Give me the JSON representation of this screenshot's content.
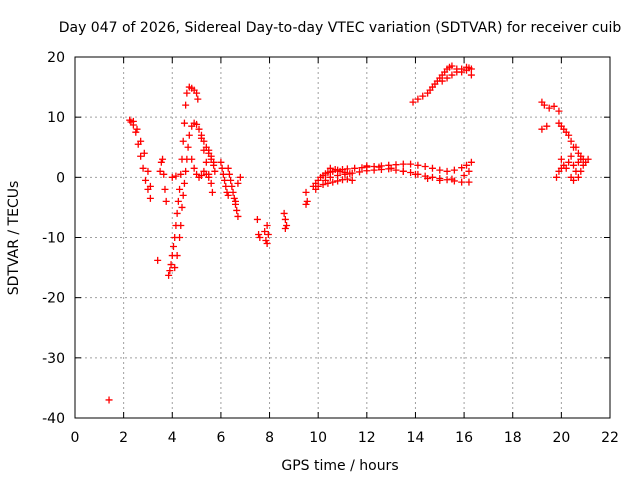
{
  "chart_data": {
    "type": "scatter",
    "title": "Day 047 of 2026, Sidereal Day-to-day VTEC variation (SDTVAR) for receiver cuib",
    "xlabel": "GPS time / hours",
    "ylabel": "SDTVAR / TECUs",
    "xlim": [
      0,
      22
    ],
    "ylim": [
      -40,
      20
    ],
    "xticks": [
      0,
      2,
      4,
      6,
      8,
      10,
      12,
      14,
      16,
      18,
      20,
      22
    ],
    "yticks": [
      -40,
      -30,
      -20,
      -10,
      0,
      10,
      20
    ],
    "grid": true,
    "marker": "+",
    "color": "#ff0000",
    "series": [
      {
        "name": "SDTVAR",
        "points": [
          [
            1.4,
            -37.0
          ],
          [
            2.25,
            9.5
          ],
          [
            2.3,
            9.2
          ],
          [
            2.4,
            8.7
          ],
          [
            2.5,
            7.5
          ],
          [
            2.6,
            5.5
          ],
          [
            2.7,
            3.5
          ],
          [
            2.8,
            1.5
          ],
          [
            2.9,
            -0.5
          ],
          [
            3.0,
            -2.0
          ],
          [
            3.1,
            -3.5
          ],
          [
            2.4,
            9.3
          ],
          [
            2.55,
            8.0
          ],
          [
            2.7,
            6.0
          ],
          [
            2.85,
            4.0
          ],
          [
            3.0,
            1.0
          ],
          [
            3.1,
            -1.5
          ],
          [
            3.4,
            -13.8
          ],
          [
            3.5,
            1.0
          ],
          [
            3.55,
            2.5
          ],
          [
            3.6,
            3.0
          ],
          [
            3.65,
            0.5
          ],
          [
            3.7,
            -2.0
          ],
          [
            3.75,
            -4.0
          ],
          [
            3.85,
            -16.3
          ],
          [
            3.9,
            -15.5
          ],
          [
            3.95,
            -14.5
          ],
          [
            4.0,
            -13.0
          ],
          [
            4.05,
            -11.5
          ],
          [
            4.1,
            -10.0
          ],
          [
            4.15,
            -8.0
          ],
          [
            4.2,
            -6.0
          ],
          [
            4.25,
            -4.0
          ],
          [
            4.3,
            -2.0
          ],
          [
            4.35,
            0.5
          ],
          [
            4.4,
            3.0
          ],
          [
            4.45,
            6.0
          ],
          [
            4.5,
            9.0
          ],
          [
            4.55,
            12.0
          ],
          [
            4.6,
            14.0
          ],
          [
            4.7,
            15.0
          ],
          [
            4.8,
            14.8
          ],
          [
            4.9,
            14.5
          ],
          [
            5.0,
            14.0
          ],
          [
            5.05,
            13.0
          ],
          [
            4.1,
            -15.0
          ],
          [
            4.2,
            -13.0
          ],
          [
            4.3,
            -10.0
          ],
          [
            4.35,
            -8.0
          ],
          [
            4.4,
            -5.0
          ],
          [
            4.45,
            -3.0
          ],
          [
            4.5,
            -1.0
          ],
          [
            4.55,
            1.0
          ],
          [
            4.6,
            3.0
          ],
          [
            4.65,
            5.0
          ],
          [
            4.7,
            7.0
          ],
          [
            4.8,
            8.5
          ],
          [
            4.9,
            9.0
          ],
          [
            5.0,
            8.8
          ],
          [
            5.1,
            8.0
          ],
          [
            5.2,
            6.5
          ],
          [
            5.3,
            4.5
          ],
          [
            5.4,
            2.5
          ],
          [
            5.5,
            0.5
          ],
          [
            5.6,
            -1.0
          ],
          [
            5.65,
            -2.5
          ],
          [
            4.0,
            0.0
          ],
          [
            4.15,
            0.2
          ],
          [
            4.8,
            3.0
          ],
          [
            4.9,
            1.5
          ],
          [
            5.0,
            0.5
          ],
          [
            5.1,
            0.0
          ],
          [
            5.2,
            0.3
          ],
          [
            5.3,
            1.0
          ],
          [
            5.4,
            0.5
          ],
          [
            5.5,
            0.0
          ],
          [
            5.2,
            7.0
          ],
          [
            5.3,
            6.0
          ],
          [
            5.4,
            5.0
          ],
          [
            5.5,
            4.0
          ],
          [
            5.6,
            3.0
          ],
          [
            5.7,
            2.0
          ],
          [
            5.75,
            1.0
          ],
          [
            5.5,
            4.5
          ],
          [
            5.6,
            3.5
          ],
          [
            5.7,
            2.5
          ],
          [
            6.0,
            2.5
          ],
          [
            6.05,
            1.5
          ],
          [
            6.1,
            0.5
          ],
          [
            6.15,
            -0.5
          ],
          [
            6.2,
            -1.5
          ],
          [
            6.25,
            -2.5
          ],
          [
            6.3,
            -3.0
          ],
          [
            6.3,
            1.5
          ],
          [
            6.35,
            0.5
          ],
          [
            6.4,
            -0.5
          ],
          [
            6.45,
            -1.5
          ],
          [
            6.5,
            -2.5
          ],
          [
            6.55,
            -3.5
          ],
          [
            6.6,
            -4.5
          ],
          [
            6.65,
            -5.5
          ],
          [
            6.7,
            -6.5
          ],
          [
            6.8,
            0.0
          ],
          [
            6.7,
            -1.0
          ],
          [
            6.6,
            -4.0
          ],
          [
            7.5,
            -7.0
          ],
          [
            7.55,
            -9.5
          ],
          [
            7.6,
            -10.0
          ],
          [
            7.8,
            -9.0
          ],
          [
            7.85,
            -10.5
          ],
          [
            7.9,
            -11.0
          ],
          [
            7.95,
            -9.5
          ],
          [
            7.9,
            -8.0
          ],
          [
            8.6,
            -6.0
          ],
          [
            8.65,
            -7.0
          ],
          [
            8.7,
            -8.0
          ],
          [
            8.65,
            -8.5
          ],
          [
            9.5,
            -2.5
          ],
          [
            9.55,
            -4.0
          ],
          [
            9.5,
            -4.5
          ],
          [
            9.8,
            -1.5
          ],
          [
            9.9,
            -1.0
          ],
          [
            10.0,
            -0.5
          ],
          [
            10.1,
            0.0
          ],
          [
            10.2,
            0.3
          ],
          [
            10.3,
            0.6
          ],
          [
            10.4,
            0.8
          ],
          [
            10.5,
            0.9
          ],
          [
            10.6,
            1.0
          ],
          [
            10.8,
            1.2
          ],
          [
            11.0,
            1.3
          ],
          [
            11.2,
            1.4
          ],
          [
            11.5,
            1.5
          ],
          [
            11.8,
            1.6
          ],
          [
            12.0,
            1.7
          ],
          [
            12.3,
            1.8
          ],
          [
            12.6,
            1.9
          ],
          [
            12.9,
            2.0
          ],
          [
            13.2,
            2.1
          ],
          [
            13.5,
            2.2
          ],
          [
            13.8,
            2.2
          ],
          [
            14.1,
            2.0
          ],
          [
            14.4,
            1.8
          ],
          [
            14.7,
            1.5
          ],
          [
            15.0,
            1.2
          ],
          [
            15.3,
            1.0
          ],
          [
            15.6,
            1.2
          ],
          [
            15.9,
            1.6
          ],
          [
            16.1,
            2.0
          ],
          [
            16.3,
            2.5
          ],
          [
            9.9,
            -2.0
          ],
          [
            10.0,
            -1.5
          ],
          [
            10.2,
            -1.2
          ],
          [
            10.4,
            -1.0
          ],
          [
            10.6,
            -0.8
          ],
          [
            10.8,
            -0.6
          ],
          [
            11.0,
            -0.4
          ],
          [
            11.2,
            -0.3
          ],
          [
            11.4,
            -0.5
          ],
          [
            10.3,
            -0.5
          ],
          [
            10.5,
            0.0
          ],
          [
            10.8,
            0.3
          ],
          [
            11.1,
            0.5
          ],
          [
            11.4,
            0.7
          ],
          [
            11.7,
            0.9
          ],
          [
            12.0,
            1.1
          ],
          [
            12.3,
            1.2
          ],
          [
            12.6,
            1.3
          ],
          [
            12.9,
            1.4
          ],
          [
            13.2,
            1.2
          ],
          [
            13.5,
            1.0
          ],
          [
            13.8,
            0.8
          ],
          [
            14.1,
            0.5
          ],
          [
            14.4,
            0.2
          ],
          [
            14.7,
            0.0
          ],
          [
            15.0,
            -0.2
          ],
          [
            15.3,
            -0.4
          ],
          [
            15.6,
            -0.6
          ],
          [
            15.9,
            -0.8
          ],
          [
            16.2,
            -0.8
          ],
          [
            10.5,
            1.5
          ],
          [
            10.7,
            1.3
          ],
          [
            10.9,
            1.0
          ],
          [
            11.1,
            0.8
          ],
          [
            11.3,
            0.6
          ],
          [
            12.0,
            1.9
          ],
          [
            12.5,
            1.7
          ],
          [
            13.0,
            1.5
          ],
          [
            13.5,
            1.0
          ],
          [
            14.0,
            0.5
          ],
          [
            14.5,
            -0.2
          ],
          [
            15.0,
            -0.5
          ],
          [
            15.5,
            -0.3
          ],
          [
            16.0,
            0.3
          ],
          [
            16.2,
            1.0
          ],
          [
            13.9,
            12.5
          ],
          [
            14.1,
            13.0
          ],
          [
            14.3,
            13.5
          ],
          [
            14.5,
            14.0
          ],
          [
            14.6,
            14.5
          ],
          [
            14.7,
            15.0
          ],
          [
            14.8,
            15.5
          ],
          [
            14.9,
            16.0
          ],
          [
            15.0,
            16.5
          ],
          [
            15.1,
            17.0
          ],
          [
            15.2,
            17.5
          ],
          [
            15.3,
            18.0
          ],
          [
            15.4,
            18.3
          ],
          [
            15.5,
            18.5
          ],
          [
            15.7,
            18.0
          ],
          [
            15.9,
            17.5
          ],
          [
            16.1,
            17.8
          ],
          [
            16.2,
            18.2
          ],
          [
            15.1,
            16.0
          ],
          [
            15.3,
            16.5
          ],
          [
            15.5,
            17.0
          ],
          [
            15.7,
            17.5
          ],
          [
            15.9,
            18.0
          ],
          [
            16.1,
            18.3
          ],
          [
            16.3,
            18.0
          ],
          [
            16.3,
            17.0
          ],
          [
            19.2,
            12.5
          ],
          [
            19.3,
            12.0
          ],
          [
            19.5,
            11.5
          ],
          [
            19.7,
            11.8
          ],
          [
            19.9,
            11.0
          ],
          [
            19.2,
            8.0
          ],
          [
            19.4,
            8.5
          ],
          [
            19.9,
            9.0
          ],
          [
            20.0,
            8.5
          ],
          [
            20.1,
            8.0
          ],
          [
            20.2,
            7.5
          ],
          [
            20.3,
            7.0
          ],
          [
            20.4,
            6.0
          ],
          [
            20.5,
            5.0
          ],
          [
            20.0,
            3.0
          ],
          [
            20.1,
            2.0
          ],
          [
            20.2,
            1.5
          ],
          [
            20.3,
            2.5
          ],
          [
            20.4,
            3.5
          ],
          [
            20.5,
            2.0
          ],
          [
            20.6,
            1.0
          ],
          [
            20.7,
            2.5
          ],
          [
            20.8,
            3.5
          ],
          [
            20.9,
            3.0
          ],
          [
            21.0,
            2.5
          ],
          [
            21.1,
            3.0
          ],
          [
            19.8,
            0.0
          ],
          [
            19.9,
            1.0
          ],
          [
            20.0,
            1.5
          ],
          [
            20.4,
            0.0
          ],
          [
            20.5,
            -0.5
          ],
          [
            20.7,
            0.0
          ],
          [
            20.8,
            1.0
          ],
          [
            20.6,
            5.0
          ],
          [
            20.7,
            4.0
          ],
          [
            20.8,
            3.0
          ],
          [
            20.9,
            2.0
          ]
        ]
      }
    ]
  }
}
